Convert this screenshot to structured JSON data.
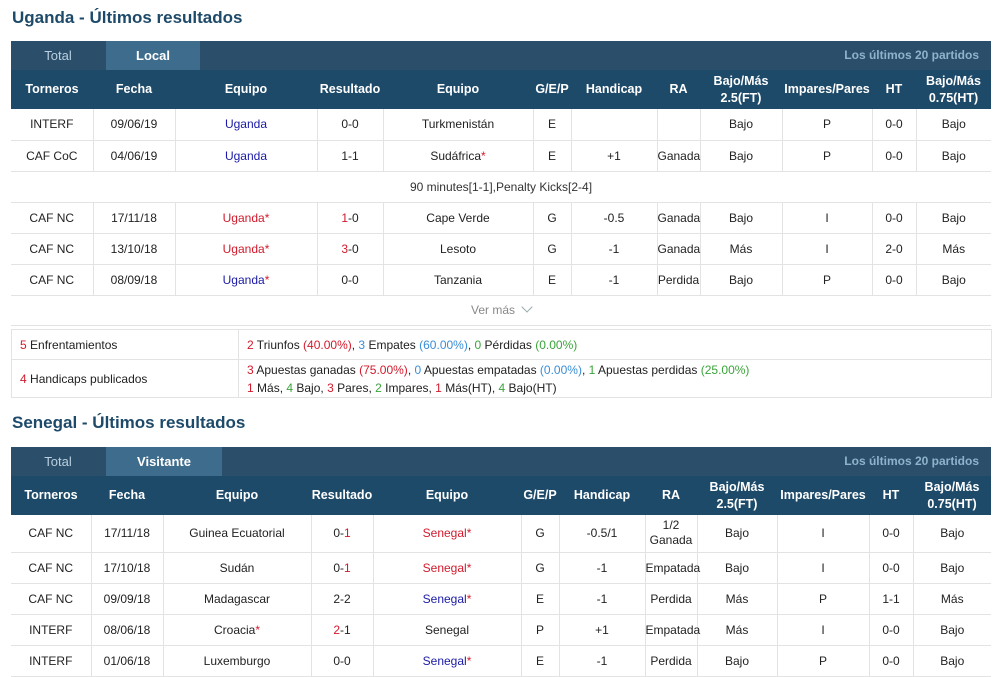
{
  "uganda": {
    "title": "Uganda - Últimos resultados",
    "tabs": {
      "total": "Total",
      "active": "Local",
      "right": "Los últimos 20 partidos"
    },
    "headers": [
      "Torneros",
      "Fecha",
      "Equipo",
      "Resultado",
      "Equipo",
      "G/E/P",
      "Handicap",
      "RA",
      "Bajo/Más 2.5(FT)",
      "Impares/Pares",
      "HT",
      "Bajo/Más 0.75(HT)"
    ],
    "rows": [
      {
        "torneo": "INTERF",
        "torneo_color": "gold",
        "fecha": "09/06/19",
        "home": "Uganda",
        "home_star": "",
        "home_color": "blue",
        "score_a": "0",
        "score_sep": "-",
        "score_b": "0",
        "score_a_red": false,
        "away": "Turkmenistán",
        "away_star": "",
        "away_color": "dark",
        "gep": "E",
        "gep_color": "lblue",
        "hcp": "",
        "ra": "",
        "ra_color": "",
        "ou": "Bajo",
        "ou_color": "green",
        "ip": "P",
        "ip_color": "red",
        "ht": "0-0",
        "ouht": "Bajo",
        "ouht_color": "green"
      },
      {
        "torneo": "CAF CoC",
        "torneo_color": "red",
        "fecha": "04/06/19",
        "home": "Uganda",
        "home_star": "",
        "home_color": "blue",
        "score_a": "1",
        "score_sep": "-",
        "score_b": "1",
        "score_a_red": false,
        "away": "Sudáfrica",
        "away_star": "*",
        "away_color": "dark",
        "gep": "E",
        "gep_color": "lblue",
        "hcp": "+1",
        "ra": "Ganada",
        "ra_color": "red",
        "ou": "Bajo",
        "ou_color": "green",
        "ip": "P",
        "ip_color": "red",
        "ht": "0-0",
        "ouht": "Bajo",
        "ouht_color": "green"
      },
      {
        "note": "90 minutes[1-1],Penalty Kicks[2-4]"
      },
      {
        "torneo": "CAF NC",
        "torneo_color": "dark",
        "fecha": "17/11/18",
        "home": "Uganda",
        "home_star": "*",
        "home_color": "red",
        "score_a": "1",
        "score_sep": "-",
        "score_b": "0",
        "score_a_red": true,
        "away": "Cape Verde",
        "away_star": "",
        "away_color": "dark",
        "gep": "G",
        "gep_color": "red",
        "hcp": "-0.5",
        "ra": "Ganada",
        "ra_color": "red",
        "ou": "Bajo",
        "ou_color": "green",
        "ip": "I",
        "ip_color": "green",
        "ht": "0-0",
        "ouht": "Bajo",
        "ouht_color": "green"
      },
      {
        "torneo": "CAF NC",
        "torneo_color": "dark",
        "fecha": "13/10/18",
        "home": "Uganda",
        "home_star": "*",
        "home_color": "red",
        "score_a": "3",
        "score_sep": "-",
        "score_b": "0",
        "score_a_red": true,
        "away": "Lesoto",
        "away_star": "",
        "away_color": "dark",
        "gep": "G",
        "gep_color": "red",
        "hcp": "-1",
        "ra": "Ganada",
        "ra_color": "red",
        "ou": "Más",
        "ou_color": "red",
        "ip": "I",
        "ip_color": "green",
        "ht": "2-0",
        "ouht": "Más",
        "ouht_color": "red"
      },
      {
        "torneo": "CAF NC",
        "torneo_color": "dark",
        "fecha": "08/09/18",
        "home": "Uganda",
        "home_star": "*",
        "home_color": "blue",
        "score_a": "0",
        "score_sep": "-",
        "score_b": "0",
        "score_a_red": false,
        "away": "Tanzania",
        "away_star": "",
        "away_color": "dark",
        "gep": "E",
        "gep_color": "lblue",
        "hcp": "-1",
        "ra": "Perdida",
        "ra_color": "green",
        "ou": "Bajo",
        "ou_color": "green",
        "ip": "P",
        "ip_color": "red",
        "ht": "0-0",
        "ouht": "Bajo",
        "ouht_color": "green"
      }
    ],
    "ver_mas": "Ver más",
    "summary": {
      "enfrent_n": "5",
      "enfrent_label": " Enfrentamientos",
      "tri_n": "2",
      "tri_label": " Triunfos ",
      "tri_pct": "(40.00%)",
      "emp_n": "3",
      "emp_label": " Empates ",
      "emp_pct": "(60.00%)",
      "per_n": "0",
      "per_label": " Pérdidas ",
      "per_pct": "(0.00%)",
      "hcp_n": "4",
      "hcp_label": " Handicaps publicados",
      "ag_n": "3",
      "ag_label": " Apuestas ganadas ",
      "ag_pct": "(75.00%)",
      "ae_n": "0",
      "ae_label": " Apuestas empatadas ",
      "ae_pct": "(0.00%)",
      "ap_n": "1",
      "ap_label": " Apuestas perdidas ",
      "ap_pct": "(25.00%)",
      "mas_n": "1",
      "mas_label": " Más, ",
      "bajo_n": "4",
      "bajo_label": " Bajo, ",
      "pares_n": "3",
      "pares_label": " Pares, ",
      "imp_n": "2",
      "imp_label": " Impares, ",
      "masht_n": "1",
      "masht_label": " Más(HT), ",
      "bajoht_n": "4",
      "bajoht_label": " Bajo(HT)"
    }
  },
  "senegal": {
    "title": "Senegal - Últimos resultados",
    "tabs": {
      "total": "Total",
      "active": "Visitante",
      "right": "Los últimos 20 partidos"
    },
    "headers": [
      "Torneros",
      "Fecha",
      "Equipo",
      "Resultado",
      "Equipo",
      "G/E/P",
      "Handicap",
      "RA",
      "Bajo/Más 2.5(FT)",
      "Impares/Pares",
      "HT",
      "Bajo/Más 0.75(HT)"
    ],
    "rows": [
      {
        "torneo": "CAF NC",
        "torneo_color": "dark",
        "fecha": "17/11/18",
        "home": "Guinea Ecuatorial",
        "home_star": "",
        "home_color": "dark",
        "score_a": "0",
        "score_sep": "-",
        "score_b": "1",
        "score_b_red": true,
        "away": "Senegal",
        "away_star": "*",
        "away_color": "red",
        "gep": "G",
        "gep_color": "red",
        "hcp": "-0.5/1",
        "ra": "1/2 Ganada",
        "ra_color": "red",
        "ou": "Bajo",
        "ou_color": "green",
        "ip": "I",
        "ip_color": "green",
        "ht": "0-0",
        "ouht": "Bajo",
        "ouht_color": "green"
      },
      {
        "torneo": "CAF NC",
        "torneo_color": "dark",
        "fecha": "17/10/18",
        "home": "Sudán",
        "home_star": "",
        "home_color": "dark",
        "score_a": "0",
        "score_sep": "-",
        "score_b": "1",
        "score_b_red": true,
        "away": "Senegal",
        "away_star": "*",
        "away_color": "red",
        "gep": "G",
        "gep_color": "red",
        "hcp": "-1",
        "ra": "Empatada",
        "ra_color": "lblue",
        "ou": "Bajo",
        "ou_color": "green",
        "ip": "I",
        "ip_color": "green",
        "ht": "0-0",
        "ouht": "Bajo",
        "ouht_color": "green"
      },
      {
        "torneo": "CAF NC",
        "torneo_color": "dark",
        "fecha": "09/09/18",
        "home": "Madagascar",
        "home_star": "",
        "home_color": "dark",
        "score_a": "2",
        "score_sep": "-",
        "score_b": "2",
        "score_b_red": false,
        "away": "Senegal",
        "away_star": "*",
        "away_color": "blue",
        "gep": "E",
        "gep_color": "lblue",
        "hcp": "-1",
        "ra": "Perdida",
        "ra_color": "green",
        "ou": "Más",
        "ou_color": "red",
        "ip": "P",
        "ip_color": "red",
        "ht": "1-1",
        "ouht": "Más",
        "ouht_color": "red"
      },
      {
        "torneo": "INTERF",
        "torneo_color": "gold",
        "fecha": "08/06/18",
        "home": "Croacia",
        "home_star": "*",
        "home_color": "dark",
        "score_a": "2",
        "score_sep": "-",
        "score_b": "1",
        "score_a_red": true,
        "away": "Senegal",
        "away_star": "",
        "away_color": "dark",
        "gep": "P",
        "gep_color": "green",
        "hcp": "+1",
        "ra": "Empatada",
        "ra_color": "lblue",
        "ou": "Más",
        "ou_color": "red",
        "ip": "I",
        "ip_color": "green",
        "ht": "0-0",
        "ouht": "Bajo",
        "ouht_color": "green"
      },
      {
        "torneo": "INTERF",
        "torneo_color": "gold",
        "fecha": "01/06/18",
        "home": "Luxemburgo",
        "home_star": "",
        "home_color": "dark",
        "score_a": "0",
        "score_sep": "-",
        "score_b": "0",
        "score_b_red": false,
        "away": "Senegal",
        "away_star": "*",
        "away_color": "blue",
        "gep": "E",
        "gep_color": "lblue",
        "hcp": "-1",
        "ra": "Perdida",
        "ra_color": "green",
        "ou": "Bajo",
        "ou_color": "green",
        "ip": "P",
        "ip_color": "red",
        "ht": "0-0",
        "ouht": "Bajo",
        "ouht_color": "green"
      }
    ]
  }
}
